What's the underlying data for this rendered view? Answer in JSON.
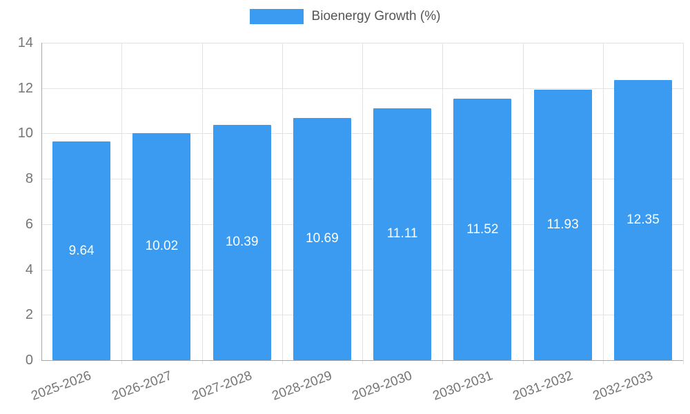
{
  "chart_data": {
    "type": "bar",
    "title": "",
    "legend_label": "Bioenergy Growth (%)",
    "legend_position": "top",
    "categories": [
      "2025-2026",
      "2026-2027",
      "2027-2028",
      "2028-2029",
      "2029-2030",
      "2030-2031",
      "2031-2032",
      "2032-2033"
    ],
    "values": [
      9.64,
      10.02,
      10.39,
      10.69,
      11.11,
      11.52,
      11.93,
      12.35
    ],
    "value_labels": [
      "9.64",
      "10.02",
      "10.39",
      "10.69",
      "11.11",
      "11.52",
      "11.93",
      "12.35"
    ],
    "xlabel": "",
    "ylabel": "",
    "ylim": [
      0,
      14
    ],
    "yticks": [
      0,
      2,
      4,
      6,
      8,
      10,
      12,
      14
    ],
    "grid": true,
    "bar_color": "#3B9BF0",
    "grid_color": "#E3E3E3",
    "axis_color": "#A6A6A6",
    "tick_text_color": "#757575",
    "legend_text_color": "#555555",
    "value_text_color": "#FFFFFF",
    "background_color": "#FFFFFF"
  }
}
